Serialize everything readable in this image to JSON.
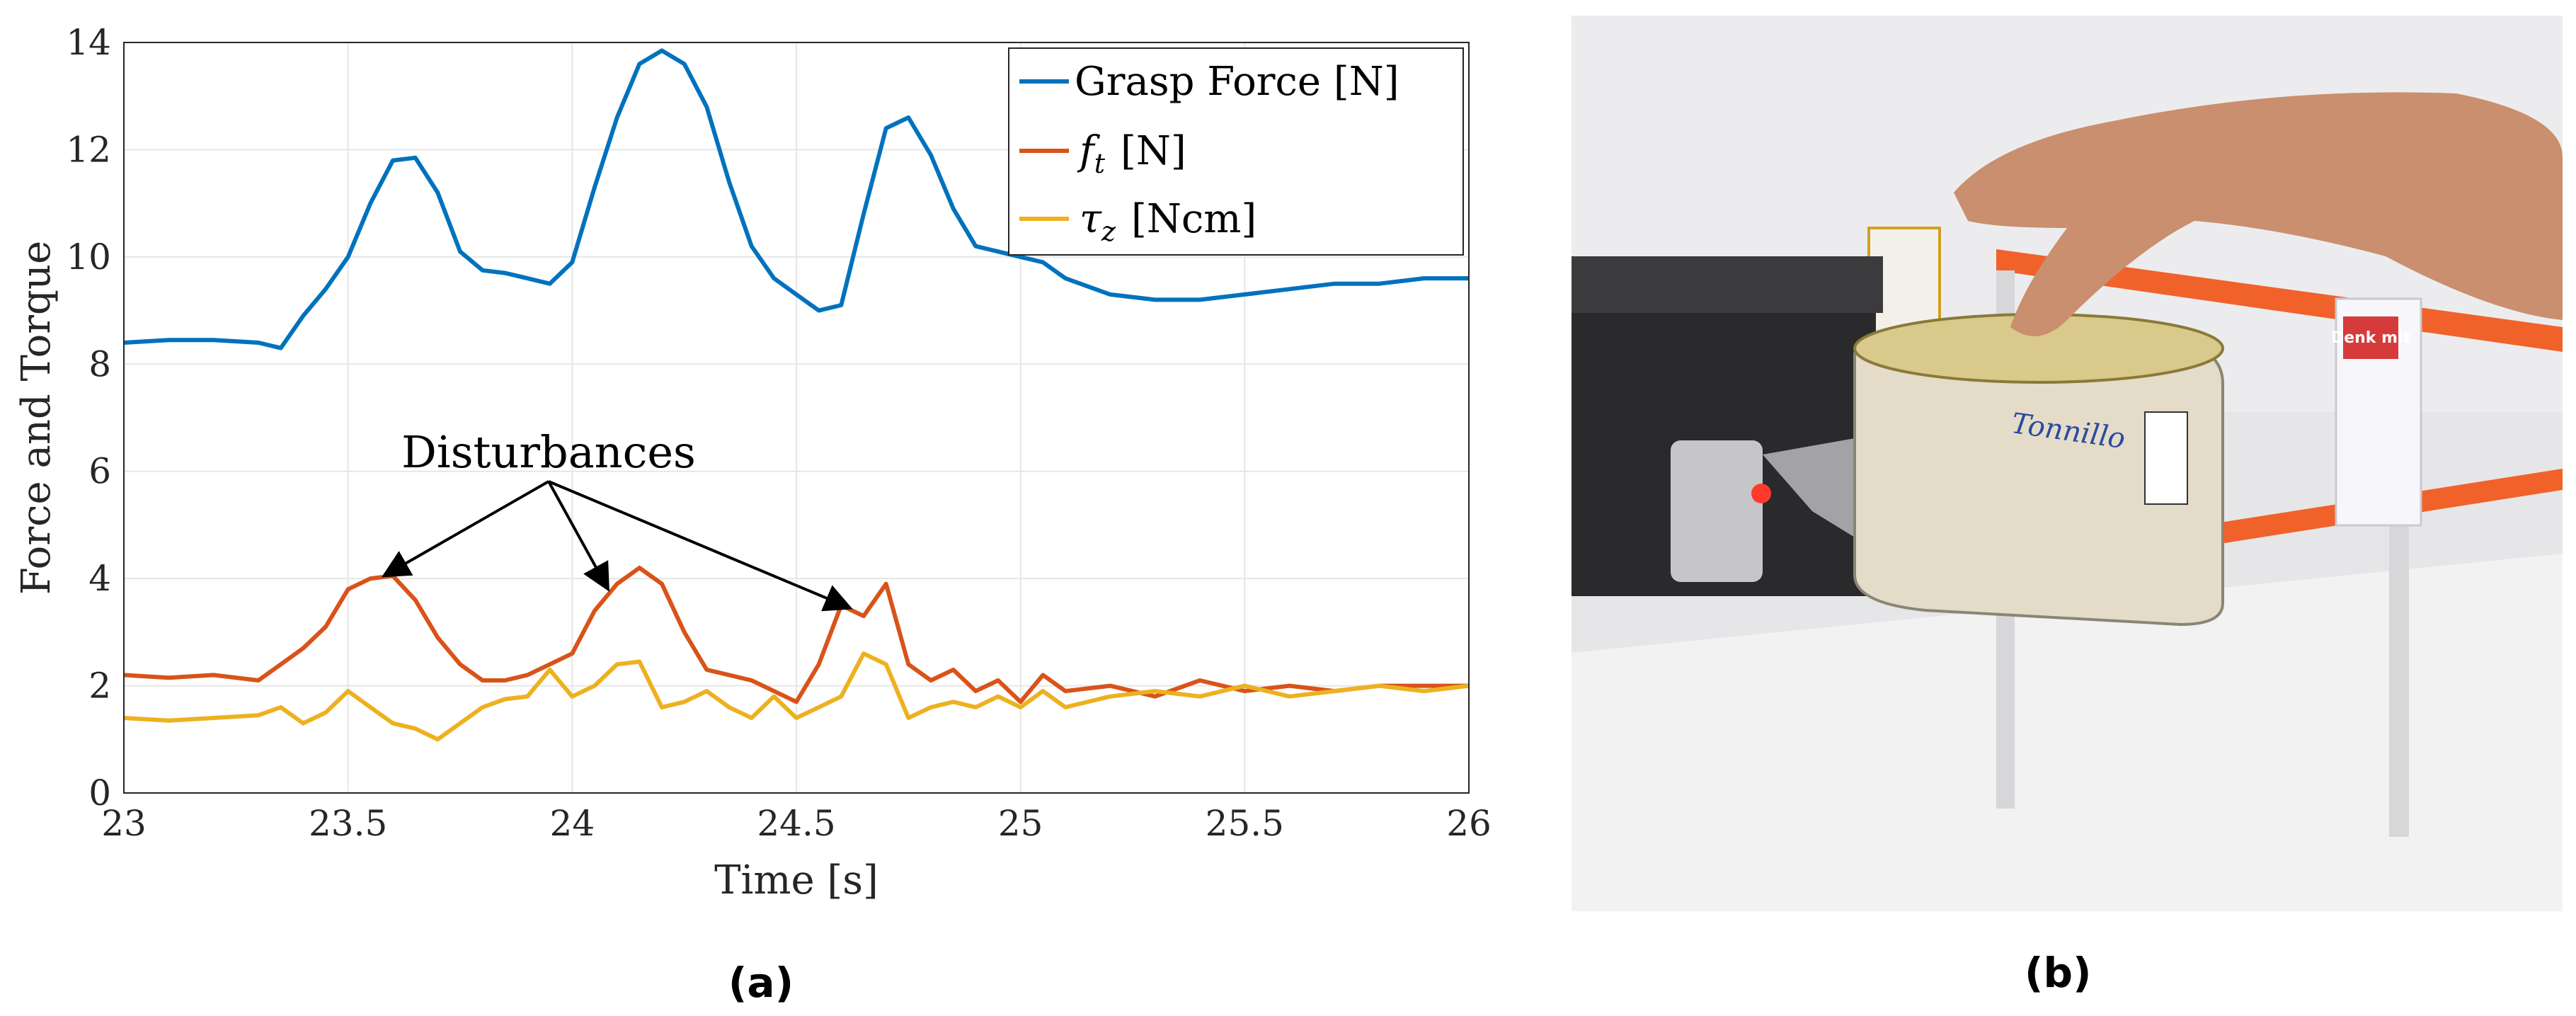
{
  "chart_data": {
    "type": "line",
    "xlabel": "Time [s]",
    "ylabel": "Force and Torque",
    "xlim": [
      23,
      26
    ],
    "ylim": [
      0,
      14
    ],
    "xticks": [
      "23",
      "23.5",
      "24",
      "24.5",
      "25",
      "25.5",
      "26"
    ],
    "yticks": [
      "0",
      "2",
      "4",
      "6",
      "8",
      "10",
      "12",
      "14"
    ],
    "grid": true,
    "legend_position": "top-right",
    "series": [
      {
        "name": "Grasp Force [N]",
        "legend_main": "Grasp Force [N]",
        "color": "#0072BD",
        "x": [
          23.0,
          23.1,
          23.2,
          23.3,
          23.35,
          23.4,
          23.45,
          23.5,
          23.55,
          23.6,
          23.65,
          23.7,
          23.75,
          23.8,
          23.85,
          23.9,
          23.95,
          24.0,
          24.05,
          24.1,
          24.15,
          24.2,
          24.25,
          24.3,
          24.35,
          24.4,
          24.45,
          24.5,
          24.55,
          24.6,
          24.65,
          24.7,
          24.75,
          24.8,
          24.85,
          24.9,
          24.95,
          25.0,
          25.05,
          25.1,
          25.2,
          25.3,
          25.4,
          25.5,
          25.6,
          25.7,
          25.8,
          25.9,
          26.0
        ],
        "y": [
          8.4,
          8.45,
          8.45,
          8.4,
          8.3,
          8.9,
          9.4,
          10.0,
          11.0,
          11.8,
          11.85,
          11.2,
          10.1,
          9.75,
          9.7,
          9.6,
          9.5,
          9.9,
          11.3,
          12.6,
          13.6,
          13.85,
          13.6,
          12.8,
          11.4,
          10.2,
          9.6,
          9.3,
          9.0,
          9.1,
          10.8,
          12.4,
          12.6,
          11.9,
          10.9,
          10.2,
          10.1,
          10.0,
          9.9,
          9.6,
          9.3,
          9.2,
          9.2,
          9.3,
          9.4,
          9.5,
          9.5,
          9.6,
          9.6
        ]
      },
      {
        "name": "f_t [N]",
        "legend_main": "f",
        "legend_sub": "t",
        "legend_unit": "[N]",
        "color": "#D95319",
        "x": [
          23.0,
          23.1,
          23.2,
          23.3,
          23.35,
          23.4,
          23.45,
          23.5,
          23.55,
          23.6,
          23.65,
          23.7,
          23.75,
          23.8,
          23.85,
          23.9,
          23.95,
          24.0,
          24.05,
          24.1,
          24.15,
          24.2,
          24.25,
          24.3,
          24.35,
          24.4,
          24.45,
          24.5,
          24.55,
          24.6,
          24.65,
          24.7,
          24.75,
          24.8,
          24.85,
          24.9,
          24.95,
          25.0,
          25.05,
          25.1,
          25.2,
          25.3,
          25.4,
          25.5,
          25.6,
          25.7,
          25.8,
          25.9,
          26.0
        ],
        "y": [
          2.2,
          2.15,
          2.2,
          2.1,
          2.4,
          2.7,
          3.1,
          3.8,
          4.0,
          4.05,
          3.6,
          2.9,
          2.4,
          2.1,
          2.1,
          2.2,
          2.4,
          2.6,
          3.4,
          3.9,
          4.2,
          3.9,
          3.0,
          2.3,
          2.2,
          2.1,
          1.9,
          1.7,
          2.4,
          3.5,
          3.3,
          3.9,
          2.4,
          2.1,
          2.3,
          1.9,
          2.1,
          1.7,
          2.2,
          1.9,
          2.0,
          1.8,
          2.1,
          1.9,
          2.0,
          1.9,
          2.0,
          2.0,
          2.0
        ]
      },
      {
        "name": "tau_z [Ncm]",
        "legend_main": "τ",
        "legend_sub": "z",
        "legend_unit": "[Ncm]",
        "color": "#EDB120",
        "x": [
          23.0,
          23.1,
          23.2,
          23.3,
          23.35,
          23.4,
          23.45,
          23.5,
          23.55,
          23.6,
          23.65,
          23.7,
          23.75,
          23.8,
          23.85,
          23.9,
          23.95,
          24.0,
          24.05,
          24.1,
          24.15,
          24.2,
          24.25,
          24.3,
          24.35,
          24.4,
          24.45,
          24.5,
          24.55,
          24.6,
          24.65,
          24.7,
          24.75,
          24.8,
          24.85,
          24.9,
          24.95,
          25.0,
          25.05,
          25.1,
          25.2,
          25.3,
          25.4,
          25.5,
          25.6,
          25.7,
          25.8,
          25.9,
          26.0
        ],
        "y": [
          1.4,
          1.35,
          1.4,
          1.45,
          1.6,
          1.3,
          1.5,
          1.9,
          1.6,
          1.3,
          1.2,
          1.0,
          1.3,
          1.6,
          1.75,
          1.8,
          2.3,
          1.8,
          2.0,
          2.4,
          2.45,
          1.6,
          1.7,
          1.9,
          1.6,
          1.4,
          1.8,
          1.4,
          1.6,
          1.8,
          2.6,
          2.4,
          1.4,
          1.6,
          1.7,
          1.6,
          1.8,
          1.6,
          1.9,
          1.6,
          1.8,
          1.9,
          1.8,
          2.0,
          1.8,
          1.9,
          2.0,
          1.9,
          2.0
        ]
      }
    ],
    "annotation": {
      "text": "Disturbances",
      "points": [
        {
          "x": 23.58,
          "y": 4.05
        },
        {
          "x": 24.08,
          "y": 3.8
        },
        {
          "x": 24.62,
          "y": 3.45
        }
      ]
    }
  },
  "captions": {
    "a": "(a)",
    "b": "(b)"
  },
  "photo": {
    "brand_label": "Denk mit",
    "can_label": "Tonnillo"
  }
}
